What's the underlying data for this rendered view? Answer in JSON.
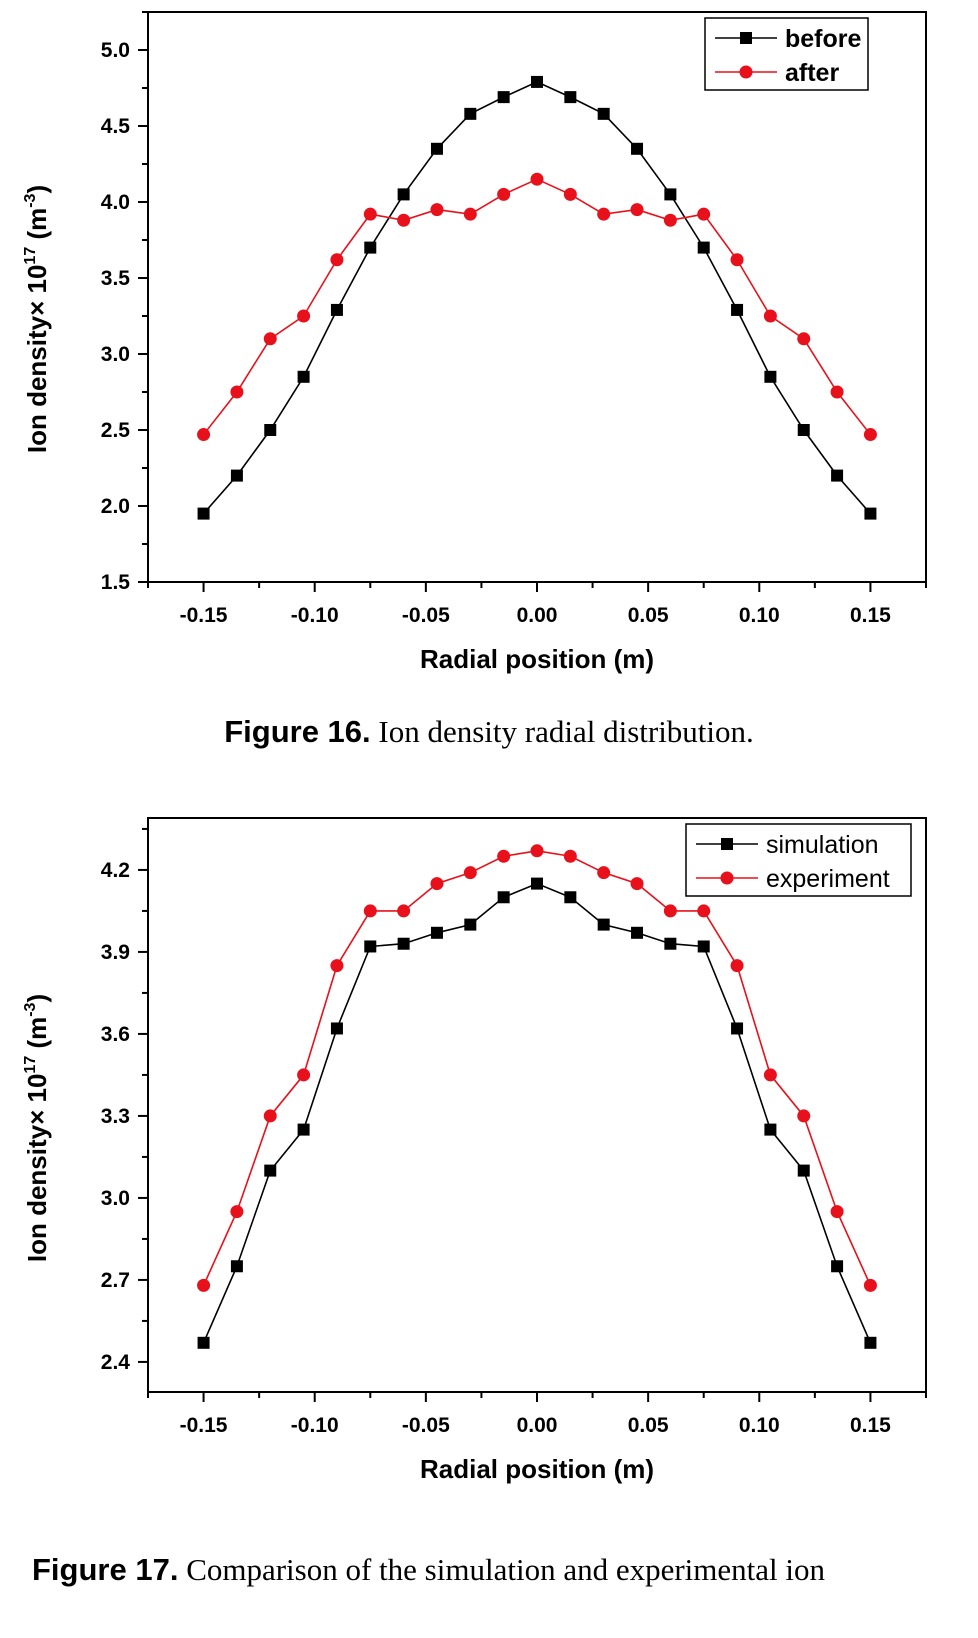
{
  "chart_data": [
    {
      "type": "line",
      "x": [
        -0.15,
        -0.135,
        -0.12,
        -0.105,
        -0.09,
        -0.075,
        -0.06,
        -0.045,
        -0.03,
        -0.015,
        0.0,
        0.015,
        0.03,
        0.045,
        0.06,
        0.075,
        0.09,
        0.105,
        0.12,
        0.135,
        0.15
      ],
      "series": [
        {
          "name": "before",
          "color": "#000000",
          "marker": "square",
          "values": [
            1.95,
            2.2,
            2.5,
            2.85,
            3.29,
            3.7,
            4.05,
            4.35,
            4.58,
            4.69,
            4.79,
            4.69,
            4.58,
            4.35,
            4.05,
            3.7,
            3.29,
            2.85,
            2.5,
            2.2,
            1.95
          ]
        },
        {
          "name": "after",
          "color": "#e8101a",
          "marker": "circle",
          "values": [
            2.47,
            2.75,
            3.1,
            3.25,
            3.62,
            3.92,
            3.88,
            3.95,
            3.92,
            4.05,
            4.15,
            4.05,
            3.92,
            3.95,
            3.88,
            3.92,
            3.62,
            3.25,
            3.1,
            2.75,
            2.47
          ]
        }
      ],
      "xlabel": "Radial position (m)",
      "ylabel_main": "Ion density× 10",
      "ylabel_sup": "17",
      "ylabel_unit": " (m",
      "ylabel_unit_sup": "-3",
      "ylabel_close": ")",
      "xlim": [
        -0.175,
        0.175
      ],
      "ylim": [
        1.5,
        5.25
      ],
      "xticks": [
        -0.15,
        -0.1,
        -0.05,
        0.0,
        0.05,
        0.1,
        0.15
      ],
      "xtick_labels": [
        "-0.15",
        "-0.10",
        "-0.05",
        "0.00",
        "0.05",
        "0.10",
        "0.15"
      ],
      "yticks": [
        1.5,
        2.0,
        2.5,
        3.0,
        3.5,
        4.0,
        4.5,
        5.0
      ],
      "ytick_labels": [
        "1.5",
        "2.0",
        "2.5",
        "3.0",
        "3.5",
        "4.0",
        "4.5",
        "5.0"
      ],
      "legend": "top-right",
      "legend_bold": true,
      "grid": false
    },
    {
      "type": "line",
      "x": [
        -0.15,
        -0.135,
        -0.12,
        -0.105,
        -0.09,
        -0.075,
        -0.06,
        -0.045,
        -0.03,
        -0.015,
        0.0,
        0.015,
        0.03,
        0.045,
        0.06,
        0.075,
        0.09,
        0.105,
        0.12,
        0.135,
        0.15
      ],
      "series": [
        {
          "name": "simulation",
          "color": "#000000",
          "marker": "square",
          "values": [
            2.47,
            2.75,
            3.1,
            3.25,
            3.62,
            3.92,
            3.93,
            3.97,
            4.0,
            4.1,
            4.15,
            4.1,
            4.0,
            3.97,
            3.93,
            3.92,
            3.62,
            3.25,
            3.1,
            2.75,
            2.47
          ]
        },
        {
          "name": "experiment",
          "color": "#e8101a",
          "marker": "circle",
          "values": [
            2.68,
            2.95,
            3.3,
            3.45,
            3.85,
            4.05,
            4.05,
            4.15,
            4.19,
            4.25,
            4.27,
            4.25,
            4.19,
            4.15,
            4.05,
            4.05,
            3.85,
            3.45,
            3.3,
            2.95,
            2.68
          ]
        }
      ],
      "xlabel": "Radial position (m)",
      "ylabel_main": "Ion density× 10",
      "ylabel_sup": "17",
      "ylabel_unit": " (m",
      "ylabel_unit_sup": "-3",
      "ylabel_close": ")",
      "xlim": [
        -0.175,
        0.175
      ],
      "ylim": [
        2.29,
        4.39
      ],
      "xticks": [
        -0.15,
        -0.1,
        -0.05,
        0.0,
        0.05,
        0.1,
        0.15
      ],
      "xtick_labels": [
        "-0.15",
        "-0.10",
        "-0.05",
        "0.00",
        "0.05",
        "0.10",
        "0.15"
      ],
      "yticks": [
        2.4,
        2.7,
        3.0,
        3.3,
        3.6,
        3.9,
        4.2
      ],
      "ytick_labels": [
        "2.4",
        "2.7",
        "3.0",
        "3.3",
        "3.6",
        "3.9",
        "4.2"
      ],
      "legend": "top-right",
      "legend_bold": false,
      "grid": false
    }
  ],
  "captions": {
    "fig16_label": "Figure 16.",
    "fig16_text": " Ion density radial distribution.",
    "fig17_label": "Figure 17.",
    "fig17_text": " Comparison of the simulation and experimental ion"
  }
}
